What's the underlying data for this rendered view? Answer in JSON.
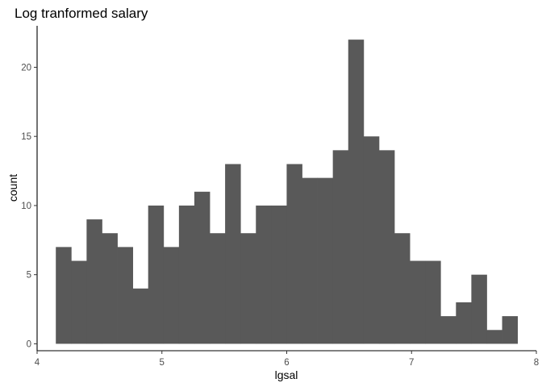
{
  "chart_data": {
    "type": "histogram",
    "title": "Log tranformed salary",
    "xlabel": "lgsal",
    "ylabel": "count",
    "xlim": [
      4.0,
      8.0
    ],
    "ylim": [
      -0.5,
      23.0
    ],
    "x_ticks": [
      4,
      5,
      6,
      7,
      8
    ],
    "y_ticks": [
      0,
      5,
      10,
      15,
      20
    ],
    "grid": false,
    "legend": "none",
    "bar_color": "#595959",
    "bin_start": 4.15,
    "bin_width": 0.1233,
    "counts": [
      7,
      6,
      9,
      8,
      7,
      4,
      10,
      7,
      10,
      11,
      8,
      13,
      8,
      10,
      10,
      13,
      12,
      12,
      14,
      22,
      15,
      14,
      8,
      6,
      6,
      2,
      3,
      5,
      1,
      2
    ]
  }
}
